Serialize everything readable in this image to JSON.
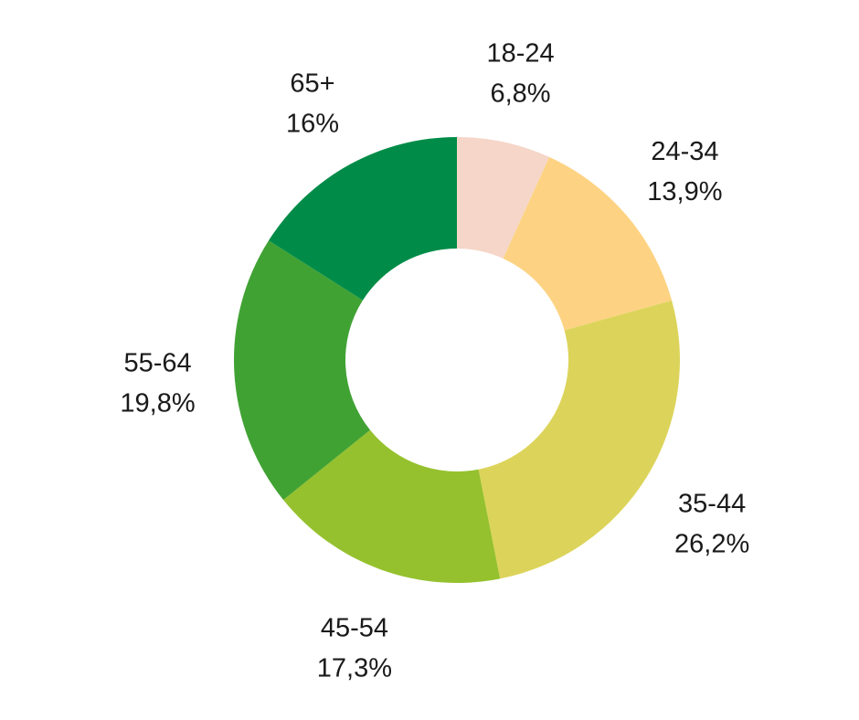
{
  "chart_data": {
    "type": "pie",
    "variant": "donut",
    "title": "",
    "legend": "none",
    "slices": [
      {
        "label": "18-24",
        "value": 6.8,
        "value_text": "6,8%",
        "color": "#f5d6c8"
      },
      {
        "label": "24-34",
        "value": 13.9,
        "value_text": "13,9%",
        "color": "#fdd383"
      },
      {
        "label": "35-44",
        "value": 26.2,
        "value_text": "26,2%",
        "color": "#dcd45a"
      },
      {
        "label": "45-54",
        "value": 17.3,
        "value_text": "17,3%",
        "color": "#95c12e"
      },
      {
        "label": "55-64",
        "value": 19.8,
        "value_text": "19,8%",
        "color": "#41a234"
      },
      {
        "label": "65+",
        "value": 16,
        "value_text": "16%",
        "color": "#008c48"
      }
    ]
  }
}
